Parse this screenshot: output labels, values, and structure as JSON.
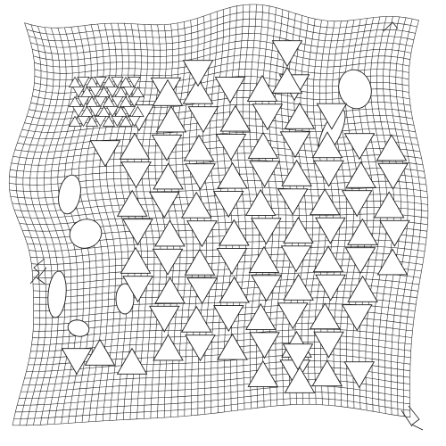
{
  "figure": {
    "kind": "deformed-mesh",
    "mesh": {
      "pattern": "square-grid",
      "columns": 60,
      "rows": 60
    },
    "inclusions": {
      "shape": "triangle",
      "arrangement": "triangular-lattice",
      "lattice_columns": 11,
      "lattice_rows": 11
    },
    "voids": 7,
    "colors": {
      "background": "#ffffff",
      "line": "#1c1c1c",
      "fill": "#ffffff"
    }
  }
}
